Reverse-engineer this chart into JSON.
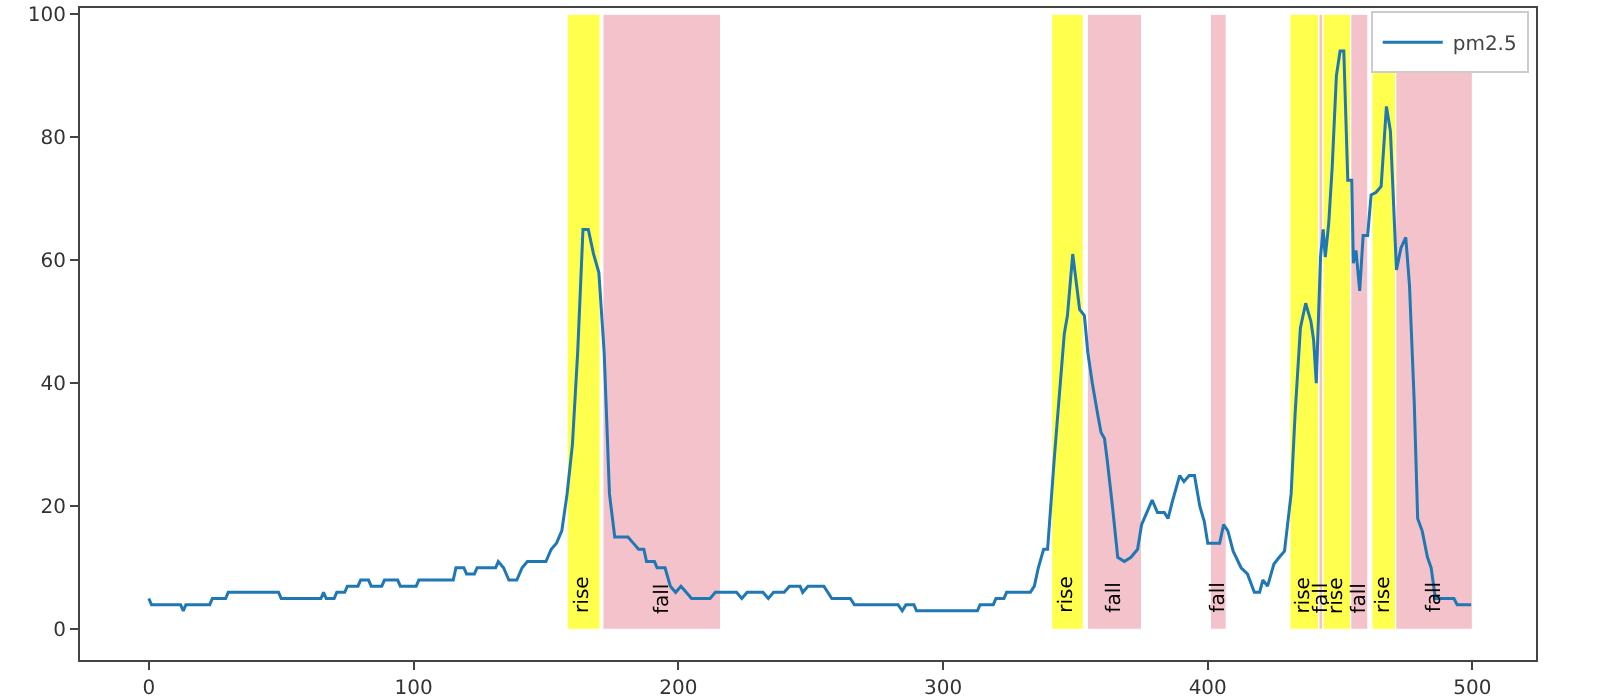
{
  "chart_data": {
    "type": "line",
    "x": [
      0,
      1,
      12,
      13,
      14,
      23,
      24,
      29,
      30,
      49,
      50,
      65,
      66,
      67,
      70,
      71,
      74,
      75,
      79,
      80,
      83,
      84,
      88,
      89,
      94,
      95,
      101,
      102,
      115,
      116,
      119,
      120,
      123,
      124,
      131,
      132,
      134,
      136,
      139,
      141,
      143,
      150,
      152,
      154,
      156,
      158,
      160,
      162,
      164,
      166,
      168,
      170,
      172,
      174,
      176,
      181,
      183,
      185,
      187,
      188,
      191,
      192,
      195,
      197,
      199,
      201,
      203,
      205,
      212,
      214,
      222,
      224,
      226,
      232,
      234,
      236,
      240,
      242,
      246,
      247,
      249,
      255,
      258,
      265,
      266.5,
      283,
      284.6,
      286,
      289,
      290,
      313,
      314,
      319,
      320,
      323,
      324,
      333,
      334.5,
      336,
      338,
      339.5,
      342,
      345.8,
      347,
      349,
      351.6,
      353.4,
      354.7,
      356.4,
      358.4,
      359.7,
      361,
      362,
      364,
      366,
      368.5,
      371,
      373.5,
      375,
      377,
      379,
      381,
      383.6,
      385,
      386.6,
      389.4,
      391,
      393,
      395,
      397,
      398.7,
      400,
      404.5,
      406,
      407.6,
      409.6,
      412.6,
      415,
      417.6,
      419.6,
      420.8,
      422.6,
      425,
      427,
      429,
      431.5,
      433,
      435,
      437,
      439,
      440,
      441,
      442.6,
      443.6,
      444.4,
      445.7,
      447,
      448.6,
      450,
      451.4,
      452.9,
      454.4,
      455,
      456,
      457.4,
      458.7,
      460.4,
      461.7,
      463.5,
      465.5,
      467.5,
      469,
      471.3,
      473,
      474.8,
      476.2,
      478,
      479.3,
      481,
      483,
      484.4,
      486,
      493,
      494.2,
      499.5
    ],
    "series": [
      {
        "name": "pm2.5",
        "color": "#1f77b4",
        "values": [
          5,
          4,
          4,
          3,
          4,
          4,
          5,
          5,
          6,
          6,
          5,
          5,
          6,
          5,
          5,
          6,
          6,
          7,
          7,
          8,
          8,
          7,
          7,
          8,
          8,
          7,
          7,
          8,
          8,
          10,
          10,
          9,
          9,
          10,
          10,
          11,
          10,
          8,
          8,
          10,
          11,
          11,
          13,
          14,
          16,
          22,
          30,
          45,
          65,
          65,
          61,
          58,
          45,
          22,
          15,
          15,
          14,
          13,
          13,
          11,
          11,
          10,
          10,
          7,
          6,
          7,
          6,
          5,
          5,
          6,
          6,
          5,
          6,
          6,
          5,
          6,
          6,
          7,
          7,
          6,
          7,
          7,
          5,
          5,
          4,
          4,
          3,
          4,
          4,
          3,
          3,
          4,
          4,
          5,
          5,
          6,
          6,
          7,
          10,
          13,
          13,
          27.6,
          48,
          51,
          61,
          52,
          51,
          45,
          40,
          35,
          32,
          31,
          27.6,
          20,
          11.7,
          11,
          11.7,
          13,
          17,
          19,
          21,
          19,
          19,
          18,
          20.7,
          25,
          24,
          25,
          25,
          20,
          17.5,
          14,
          14,
          17,
          16,
          12.7,
          10,
          9,
          6,
          6,
          8,
          7,
          10.6,
          11.7,
          12.7,
          22,
          35,
          49,
          53,
          50,
          47,
          40,
          60.5,
          65,
          60.5,
          66,
          75,
          90,
          94,
          94,
          73,
          73,
          59.5,
          61.6,
          55,
          64,
          64,
          70.6,
          71,
          72,
          85,
          81,
          58.4,
          62,
          63.7,
          56,
          37,
          18,
          16,
          11.7,
          10,
          5,
          5,
          4,
          4
        ]
      }
    ],
    "bands": [
      {
        "axis": "x",
        "from": 158,
        "to": 170.5,
        "label": "rise",
        "color": "#ffff4d"
      },
      {
        "axis": "x",
        "from": 171.5,
        "to": 216,
        "label": "fall",
        "color": "#f4c2ca"
      },
      {
        "axis": "x",
        "from": 341,
        "to": 353,
        "label": "rise",
        "color": "#ffff4d"
      },
      {
        "axis": "x",
        "from": 354.5,
        "to": 375,
        "label": "fall",
        "color": "#f4c2ca"
      },
      {
        "axis": "x",
        "from": 401,
        "to": 407,
        "label": "fall",
        "color": "#f4c2ca"
      },
      {
        "axis": "x",
        "from": 431,
        "to": 442,
        "label": "rise",
        "color": "#ffff4d"
      },
      {
        "axis": "x",
        "from": 442,
        "to": 443.5,
        "label": "fall",
        "color": "#f4c2ca"
      },
      {
        "axis": "x",
        "from": 443.5,
        "to": 454,
        "label": "rise",
        "color": "#ffff4d"
      },
      {
        "axis": "x",
        "from": 454,
        "to": 460.5,
        "label": "fall",
        "color": "#f4c2ca"
      },
      {
        "axis": "x",
        "from": 462,
        "to": 471,
        "label": "rise",
        "color": "#ffff4d"
      },
      {
        "axis": "x",
        "from": 471,
        "to": 500,
        "label": "fall",
        "color": "#f4c2ca"
      }
    ],
    "xlim": [
      -26,
      524
    ],
    "ylim": [
      -5,
      101
    ],
    "xticks": [
      0,
      100,
      200,
      300,
      400,
      500
    ],
    "yticks": [
      0,
      20,
      40,
      60,
      80,
      100
    ],
    "grid": false,
    "legend": "top right",
    "marker": "none",
    "line_style": "solid"
  }
}
